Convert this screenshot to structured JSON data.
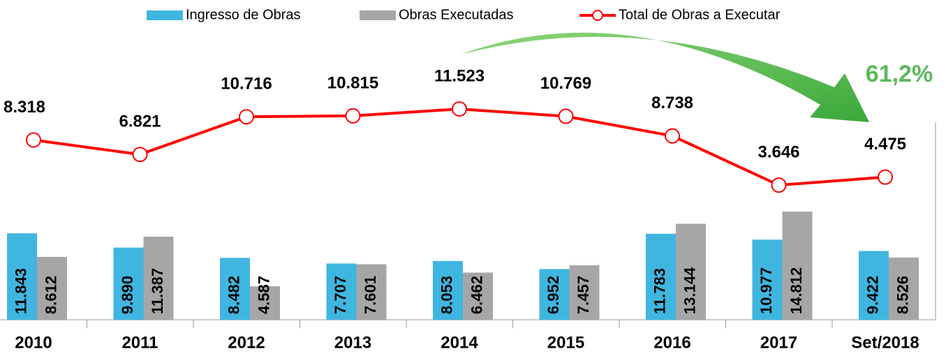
{
  "chart_data": {
    "type": "bar_line",
    "categories": [
      "2010",
      "2011",
      "2012",
      "2013",
      "2014",
      "2015",
      "2016",
      "2017",
      "Set/2018"
    ],
    "series": [
      {
        "name": "Ingresso de Obras",
        "color": "#3fb6e0",
        "values": [
          11843,
          9890,
          8482,
          7707,
          8053,
          6952,
          11783,
          10977,
          9422
        ],
        "value_labels": [
          "11.843",
          "9.890",
          "8.482",
          "7.707",
          "8.053",
          "6.952",
          "11.783",
          "10.977",
          "9.422"
        ]
      },
      {
        "name": "Obras Executadas",
        "color": "#a6a6a6",
        "values": [
          8612,
          11387,
          4587,
          7601,
          6462,
          7457,
          13144,
          14812,
          8526
        ],
        "value_labels": [
          "8.612",
          "11.387",
          "4.587",
          "7.601",
          "6.462",
          "7.457",
          "13.144",
          "14.812",
          "8.526"
        ]
      },
      {
        "name": "Total de Obras a Executar",
        "color": "#ff0000",
        "axis": "y2",
        "values": [
          8318,
          6821,
          10716,
          10815,
          11523,
          10769,
          8738,
          3646,
          4475
        ],
        "value_labels": [
          "8.318",
          "6.821",
          "10.716",
          "10.815",
          "11.523",
          "10.769",
          "8.738",
          "3.646",
          "4.475"
        ]
      }
    ],
    "ylim": [
      0,
      35000
    ],
    "y2lim": [
      -10000,
      15000
    ],
    "annotation": "61,2%"
  }
}
